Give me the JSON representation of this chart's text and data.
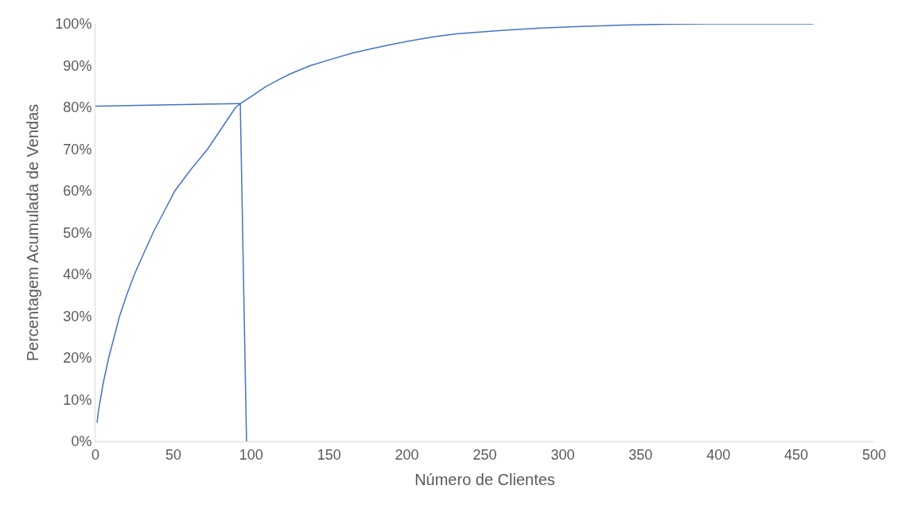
{
  "chart_data": {
    "type": "line",
    "xlabel": "Número de Clientes",
    "ylabel": "Percentagem Acumulada de Vendas",
    "xlim": [
      0,
      500
    ],
    "xticks": [
      0,
      50,
      100,
      150,
      200,
      250,
      300,
      350,
      400,
      450,
      500
    ],
    "ylim": [
      0,
      100
    ],
    "yticks": [
      {
        "value": 0,
        "label": "0%"
      },
      {
        "value": 10,
        "label": "10%"
      },
      {
        "value": 20,
        "label": "20%"
      },
      {
        "value": 30,
        "label": "30%"
      },
      {
        "value": 40,
        "label": "40%"
      },
      {
        "value": 50,
        "label": "50%"
      },
      {
        "value": 60,
        "label": "60%"
      },
      {
        "value": 70,
        "label": "70%"
      },
      {
        "value": 80,
        "label": "80%"
      },
      {
        "value": 90,
        "label": "90%"
      },
      {
        "value": 100,
        "label": "100%"
      }
    ],
    "grid": false,
    "marker": "none",
    "line_style": "solid",
    "series": [
      {
        "color": "#4472c4",
        "x": [
          1,
          2,
          5,
          8.5,
          12,
          15.5,
          20,
          25,
          31,
          37,
          44,
          51,
          61,
          72,
          81,
          90,
          93,
          100,
          109,
          117,
          125,
          138,
          152,
          165,
          179,
          193,
          206,
          219,
          232,
          259,
          286,
          312,
          339,
          366,
          393,
          420,
          452,
          461
        ],
        "values": [
          4.5,
          7.5,
          14,
          20,
          25,
          30,
          35,
          40,
          45,
          50,
          55,
          60,
          65,
          70,
          75,
          80,
          80.9,
          82.6,
          84.9,
          86.5,
          88,
          90,
          91.6,
          93,
          94.2,
          95.3,
          96.2,
          97,
          97.6,
          98.4,
          99,
          99.4,
          99.7,
          99.9,
          100,
          100,
          100,
          100
        ]
      },
      {
        "color": "#4472c4",
        "x": [
          0,
          93
        ],
        "values": [
          80.3,
          80.9
        ]
      },
      {
        "color": "#4472c4",
        "x": [
          93,
          97
        ],
        "values": [
          80.9,
          0
        ]
      }
    ]
  }
}
